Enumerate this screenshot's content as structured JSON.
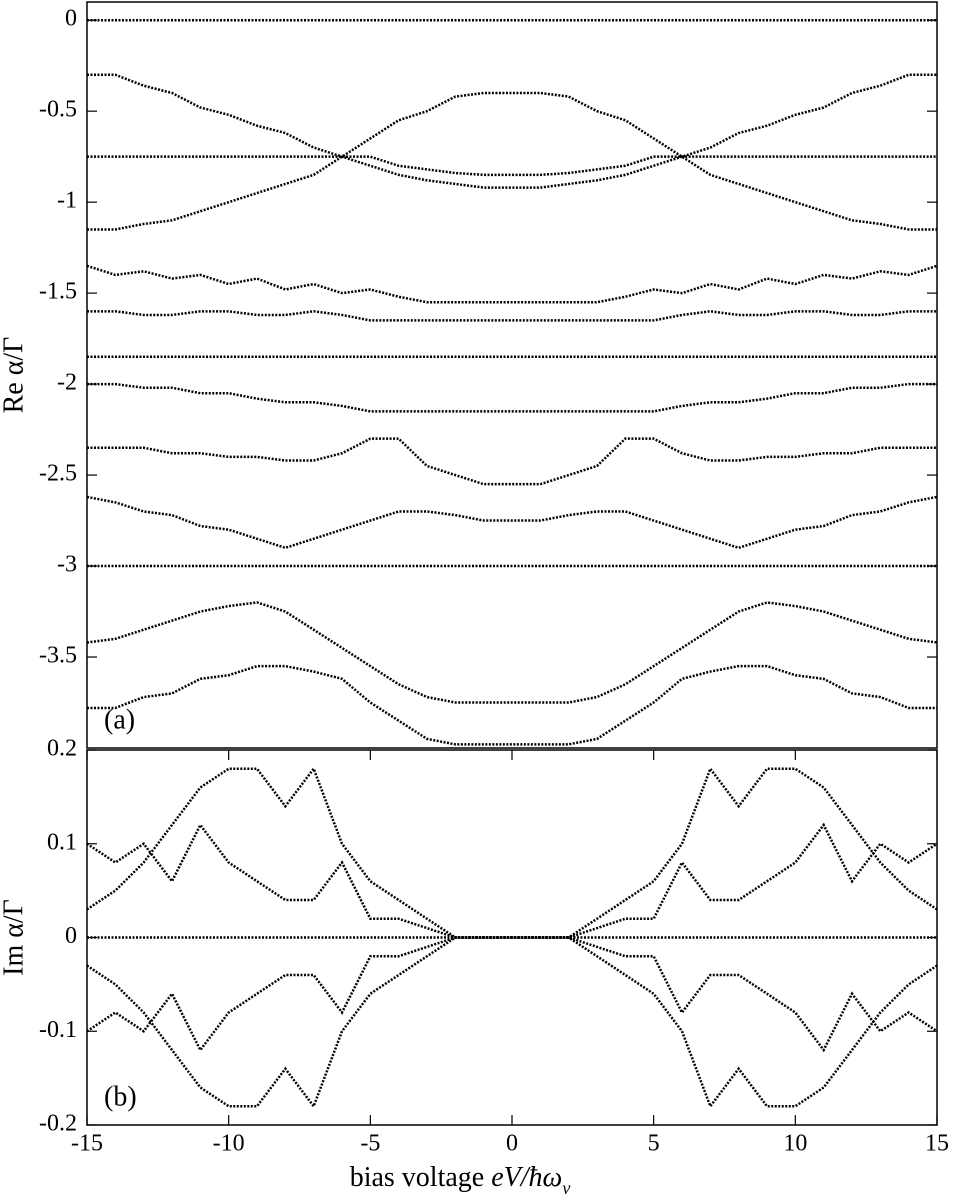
{
  "chart_data": [
    {
      "type": "line",
      "ylabel": "Re α/Γ",
      "panel_label": "(a)",
      "x": [
        -15,
        -14,
        -13,
        -12,
        -11,
        -10,
        -9,
        -8,
        -7,
        -6,
        -5,
        -4,
        -3,
        -2,
        -1,
        0,
        1,
        2,
        3,
        4,
        5,
        6,
        7,
        8,
        9,
        10,
        11,
        12,
        13,
        14,
        15
      ],
      "xlim": [
        -15,
        15
      ],
      "ylim": [
        -4,
        0.1
      ],
      "yticks": [
        0,
        -0.5,
        -1,
        -1.5,
        -2,
        -2.5,
        -3,
        -3.5
      ],
      "series": [
        {
          "color": "#000000",
          "values": [
            0,
            0,
            0,
            0,
            0,
            0,
            0,
            0,
            0,
            0,
            0,
            0,
            0,
            0,
            0,
            0,
            0,
            0,
            0,
            0,
            0,
            0,
            0,
            0,
            0,
            0,
            0,
            0,
            0,
            0,
            0
          ]
        },
        {
          "color": "#000000",
          "values": [
            -0.3,
            -0.3,
            -0.36,
            -0.4,
            -0.48,
            -0.52,
            -0.58,
            -0.62,
            -0.7,
            -0.75,
            -0.8,
            -0.85,
            -0.88,
            -0.9,
            -0.92,
            -0.92,
            -0.92,
            -0.9,
            -0.88,
            -0.85,
            -0.8,
            -0.75,
            -0.7,
            -0.62,
            -0.58,
            -0.52,
            -0.48,
            -0.4,
            -0.36,
            -0.3,
            -0.3
          ]
        },
        {
          "color": "#000000",
          "values": [
            -0.75,
            -0.75,
            -0.75,
            -0.75,
            -0.75,
            -0.75,
            -0.75,
            -0.75,
            -0.75,
            -0.75,
            -0.75,
            -0.8,
            -0.82,
            -0.84,
            -0.85,
            -0.85,
            -0.85,
            -0.84,
            -0.82,
            -0.8,
            -0.75,
            -0.75,
            -0.75,
            -0.75,
            -0.75,
            -0.75,
            -0.75,
            -0.75,
            -0.75,
            -0.75,
            -0.75
          ]
        },
        {
          "color": "#000000",
          "values": [
            -1.15,
            -1.15,
            -1.12,
            -1.1,
            -1.05,
            -1,
            -0.95,
            -0.9,
            -0.85,
            -0.75,
            -0.65,
            -0.55,
            -0.5,
            -0.42,
            -0.4,
            -0.4,
            -0.4,
            -0.42,
            -0.5,
            -0.55,
            -0.65,
            -0.75,
            -0.85,
            -0.9,
            -0.95,
            -1,
            -1.05,
            -1.1,
            -1.12,
            -1.15,
            -1.15
          ]
        },
        {
          "color": "#000000",
          "values": [
            -1.35,
            -1.4,
            -1.38,
            -1.42,
            -1.4,
            -1.45,
            -1.42,
            -1.48,
            -1.45,
            -1.5,
            -1.48,
            -1.52,
            -1.55,
            -1.55,
            -1.55,
            -1.55,
            -1.55,
            -1.55,
            -1.55,
            -1.52,
            -1.48,
            -1.5,
            -1.45,
            -1.48,
            -1.42,
            -1.45,
            -1.4,
            -1.42,
            -1.38,
            -1.4,
            -1.35
          ]
        },
        {
          "color": "#000000",
          "values": [
            -1.6,
            -1.6,
            -1.62,
            -1.62,
            -1.6,
            -1.6,
            -1.62,
            -1.62,
            -1.6,
            -1.62,
            -1.65,
            -1.65,
            -1.65,
            -1.65,
            -1.65,
            -1.65,
            -1.65,
            -1.65,
            -1.65,
            -1.65,
            -1.65,
            -1.62,
            -1.6,
            -1.62,
            -1.62,
            -1.6,
            -1.6,
            -1.62,
            -1.62,
            -1.6,
            -1.6
          ]
        },
        {
          "color": "#000000",
          "values": [
            -1.85,
            -1.85,
            -1.85,
            -1.85,
            -1.85,
            -1.85,
            -1.85,
            -1.85,
            -1.85,
            -1.85,
            -1.85,
            -1.85,
            -1.85,
            -1.85,
            -1.85,
            -1.85,
            -1.85,
            -1.85,
            -1.85,
            -1.85,
            -1.85,
            -1.85,
            -1.85,
            -1.85,
            -1.85,
            -1.85,
            -1.85,
            -1.85,
            -1.85,
            -1.85,
            -1.85
          ]
        },
        {
          "color": "#000000",
          "values": [
            -2,
            -2,
            -2.02,
            -2.02,
            -2.05,
            -2.05,
            -2.08,
            -2.1,
            -2.1,
            -2.12,
            -2.15,
            -2.15,
            -2.15,
            -2.15,
            -2.15,
            -2.15,
            -2.15,
            -2.15,
            -2.15,
            -2.15,
            -2.15,
            -2.12,
            -2.1,
            -2.1,
            -2.08,
            -2.05,
            -2.05,
            -2.02,
            -2.02,
            -2,
            -2
          ]
        },
        {
          "color": "#000000",
          "values": [
            -2.35,
            -2.35,
            -2.35,
            -2.38,
            -2.38,
            -2.4,
            -2.4,
            -2.42,
            -2.42,
            -2.38,
            -2.3,
            -2.3,
            -2.45,
            -2.5,
            -2.55,
            -2.55,
            -2.55,
            -2.5,
            -2.45,
            -2.3,
            -2.3,
            -2.38,
            -2.42,
            -2.42,
            -2.4,
            -2.4,
            -2.38,
            -2.38,
            -2.35,
            -2.35,
            -2.35
          ]
        },
        {
          "color": "#000000",
          "values": [
            -2.62,
            -2.65,
            -2.7,
            -2.72,
            -2.78,
            -2.8,
            -2.85,
            -2.9,
            -2.85,
            -2.8,
            -2.75,
            -2.7,
            -2.7,
            -2.72,
            -2.75,
            -2.75,
            -2.75,
            -2.72,
            -2.7,
            -2.7,
            -2.75,
            -2.8,
            -2.85,
            -2.9,
            -2.85,
            -2.8,
            -2.78,
            -2.72,
            -2.7,
            -2.65,
            -2.62
          ]
        },
        {
          "color": "#000000",
          "values": [
            -3,
            -3,
            -3,
            -3,
            -3,
            -3,
            -3,
            -3,
            -3,
            -3,
            -3,
            -3,
            -3,
            -3,
            -3,
            -3,
            -3,
            -3,
            -3,
            -3,
            -3,
            -3,
            -3,
            -3,
            -3,
            -3,
            -3,
            -3,
            -3,
            -3,
            -3
          ]
        },
        {
          "color": "#000000",
          "values": [
            -3.42,
            -3.4,
            -3.35,
            -3.3,
            -3.25,
            -3.22,
            -3.2,
            -3.25,
            -3.35,
            -3.45,
            -3.55,
            -3.65,
            -3.72,
            -3.75,
            -3.75,
            -3.75,
            -3.75,
            -3.75,
            -3.72,
            -3.65,
            -3.55,
            -3.45,
            -3.35,
            -3.25,
            -3.2,
            -3.22,
            -3.25,
            -3.3,
            -3.35,
            -3.4,
            -3.42
          ]
        },
        {
          "color": "#000000",
          "values": [
            -3.78,
            -3.78,
            -3.72,
            -3.7,
            -3.62,
            -3.6,
            -3.55,
            -3.55,
            -3.58,
            -3.62,
            -3.75,
            -3.85,
            -3.95,
            -3.98,
            -3.98,
            -3.98,
            -3.98,
            -3.98,
            -3.95,
            -3.85,
            -3.75,
            -3.62,
            -3.58,
            -3.55,
            -3.55,
            -3.6,
            -3.62,
            -3.7,
            -3.72,
            -3.78,
            -3.78
          ]
        }
      ]
    },
    {
      "type": "line",
      "ylabel": "Im α/Γ",
      "panel_label": "(b)",
      "xlabel": "bias voltage ",
      "xlabel_math": "eV/ħω",
      "xlabel_sub": "ν",
      "x": [
        -15,
        -14,
        -13,
        -12,
        -11,
        -10,
        -9,
        -8,
        -7,
        -6,
        -5,
        -4,
        -3,
        -2,
        -1,
        0,
        1,
        2,
        3,
        4,
        5,
        6,
        7,
        8,
        9,
        10,
        11,
        12,
        13,
        14,
        15
      ],
      "xlim": [
        -15,
        15
      ],
      "ylim": [
        -0.2,
        0.2
      ],
      "xticks": [
        -15,
        -10,
        -5,
        0,
        5,
        10,
        15
      ],
      "yticks": [
        0.2,
        0.1,
        0,
        -0.1,
        -0.2
      ],
      "series": [
        {
          "color": "#000000",
          "values": [
            0,
            0,
            0,
            0,
            0,
            0,
            0,
            0,
            0,
            0,
            0,
            0,
            0,
            0,
            0,
            0,
            0,
            0,
            0,
            0,
            0,
            0,
            0,
            0,
            0,
            0,
            0,
            0,
            0,
            0,
            0
          ]
        },
        {
          "color": "#000000",
          "values": [
            0.03,
            0.05,
            0.08,
            0.12,
            0.16,
            0.18,
            0.18,
            0.14,
            0.18,
            0.1,
            0.06,
            0.04,
            0.02,
            0,
            0,
            0,
            0,
            0,
            0.02,
            0.04,
            0.06,
            0.1,
            0.18,
            0.14,
            0.18,
            0.18,
            0.16,
            0.12,
            0.08,
            0.05,
            0.03
          ]
        },
        {
          "color": "#000000",
          "values": [
            -0.03,
            -0.05,
            -0.08,
            -0.12,
            -0.16,
            -0.18,
            -0.18,
            -0.14,
            -0.18,
            -0.1,
            -0.06,
            -0.04,
            -0.02,
            0,
            0,
            0,
            0,
            0,
            -0.02,
            -0.04,
            -0.06,
            -0.1,
            -0.18,
            -0.14,
            -0.18,
            -0.18,
            -0.16,
            -0.12,
            -0.08,
            -0.05,
            -0.03
          ]
        },
        {
          "color": "#000000",
          "values": [
            0.1,
            0.08,
            0.1,
            0.06,
            0.12,
            0.08,
            0.06,
            0.04,
            0.04,
            0.08,
            0.02,
            0.02,
            0.01,
            0,
            0,
            0,
            0,
            0,
            0.01,
            0.02,
            0.02,
            0.08,
            0.04,
            0.04,
            0.06,
            0.08,
            0.12,
            0.06,
            0.1,
            0.08,
            0.1
          ]
        },
        {
          "color": "#000000",
          "values": [
            -0.1,
            -0.08,
            -0.1,
            -0.06,
            -0.12,
            -0.08,
            -0.06,
            -0.04,
            -0.04,
            -0.08,
            -0.02,
            -0.02,
            -0.01,
            0,
            0,
            0,
            0,
            0,
            -0.01,
            -0.02,
            -0.02,
            -0.08,
            -0.04,
            -0.04,
            -0.06,
            -0.08,
            -0.12,
            -0.06,
            -0.1,
            -0.08,
            -0.1
          ]
        }
      ]
    }
  ]
}
